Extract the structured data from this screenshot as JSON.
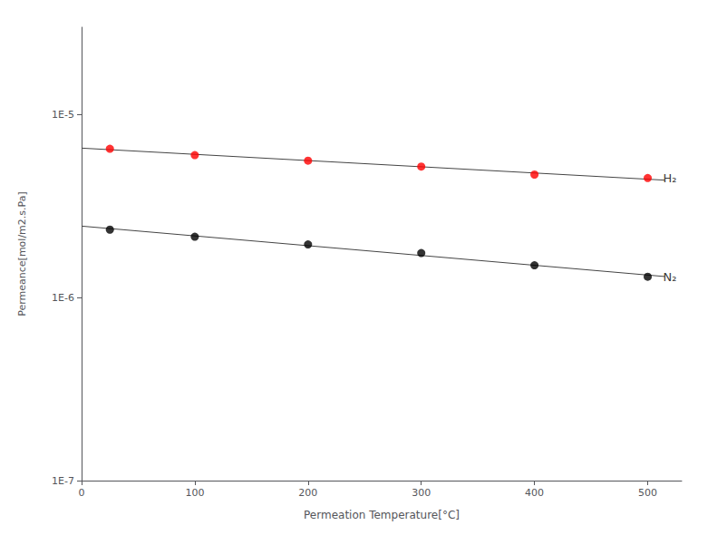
{
  "chart_data": {
    "type": "scatter",
    "xlabel": "Permeation Temperature[°C]",
    "ylabel": "Permeance[mol/m2.s.Pa]",
    "log": "y",
    "grid": false,
    "xlim": [
      0,
      530
    ],
    "xticks": [
      0,
      100,
      200,
      300,
      400,
      500
    ],
    "ylim": [
      1e-07,
      3e-05
    ],
    "yticks": [
      {
        "value": 1e-07,
        "label": "1E-7"
      },
      {
        "value": 1e-06,
        "label": "1E-6"
      },
      {
        "value": 1e-05,
        "label": "1E-5"
      }
    ],
    "series": [
      {
        "type": "line",
        "color": "#444444",
        "x": [
          0,
          515
        ],
        "values": [
          6.5528e-06,
          4.3802e-06
        ]
      },
      {
        "type": "line",
        "color": "#444444",
        "x": [
          0,
          515
        ],
        "values": [
          2.4566e-06,
          1.3031e-06
        ]
      },
      {
        "type": "scatter",
        "color": "#ff0000",
        "x": [
          25,
          100,
          200,
          300,
          400,
          500
        ],
        "values": [
          6.5e-06,
          6e-06,
          5.6e-06,
          5.2e-06,
          4.7e-06,
          4.5e-06
        ]
      },
      {
        "type": "scatter",
        "color": "#000000",
        "x": [
          25,
          100,
          200,
          300,
          400,
          500
        ],
        "values": [
          2.35e-06,
          2.15e-06,
          1.95e-06,
          1.75e-06,
          1.5e-06,
          1.3e-06
        ]
      }
    ],
    "annotations": [
      {
        "text": "H₂",
        "x": 512,
        "y": 4.5e-06
      },
      {
        "text": "N₂",
        "x": 512,
        "y": 1.3e-06
      }
    ]
  }
}
